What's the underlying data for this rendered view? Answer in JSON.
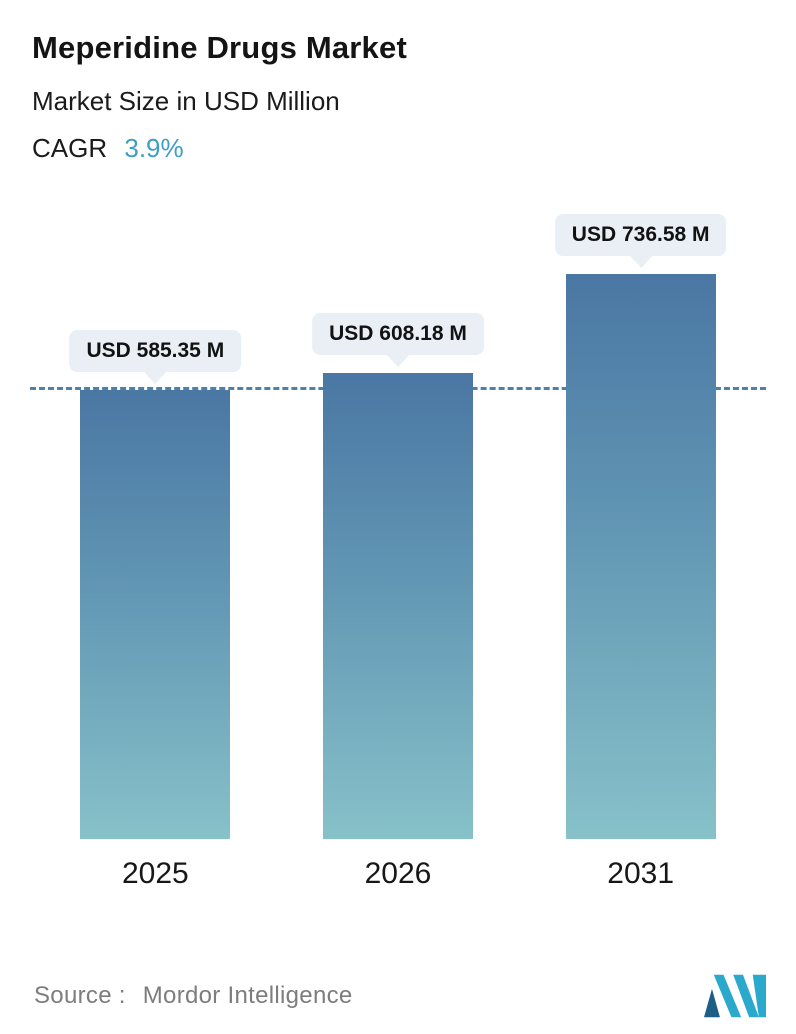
{
  "header": {
    "title": "Meperidine Drugs Market",
    "subtitle": "Market Size in USD Million",
    "cagr_label": "CAGR",
    "cagr_value": "3.9%"
  },
  "chart_data": {
    "type": "bar",
    "title": "Meperidine Drugs Market",
    "subtitle": "Market Size in USD Million",
    "cagr_percent": 3.9,
    "categories": [
      "2025",
      "2026",
      "2031"
    ],
    "values": [
      585.35,
      608.18,
      736.58
    ],
    "value_labels": [
      "USD 585.35 M",
      "USD 608.18 M",
      "USD 736.58 M"
    ],
    "xlabel": "",
    "ylabel": "Market Size in USD Million",
    "ylim": [
      0,
      750
    ],
    "reference_line_value": 585.35,
    "grid": false,
    "legend": false,
    "bar_gradient_top": "#4a77a3",
    "bar_gradient_bottom": "#87c1c9",
    "reference_line_color": "#4d80ab",
    "label_bubble_color": "#e9eff4"
  },
  "footer": {
    "source_label": "Source :",
    "source_value": "Mordor Intelligence",
    "logo": "mordor-intelligence-logo"
  },
  "colors": {
    "accent_blue": "#3d9dc5",
    "text_dark": "#141414",
    "text_gray": "#7d7d7d",
    "background": "#ffffff"
  }
}
